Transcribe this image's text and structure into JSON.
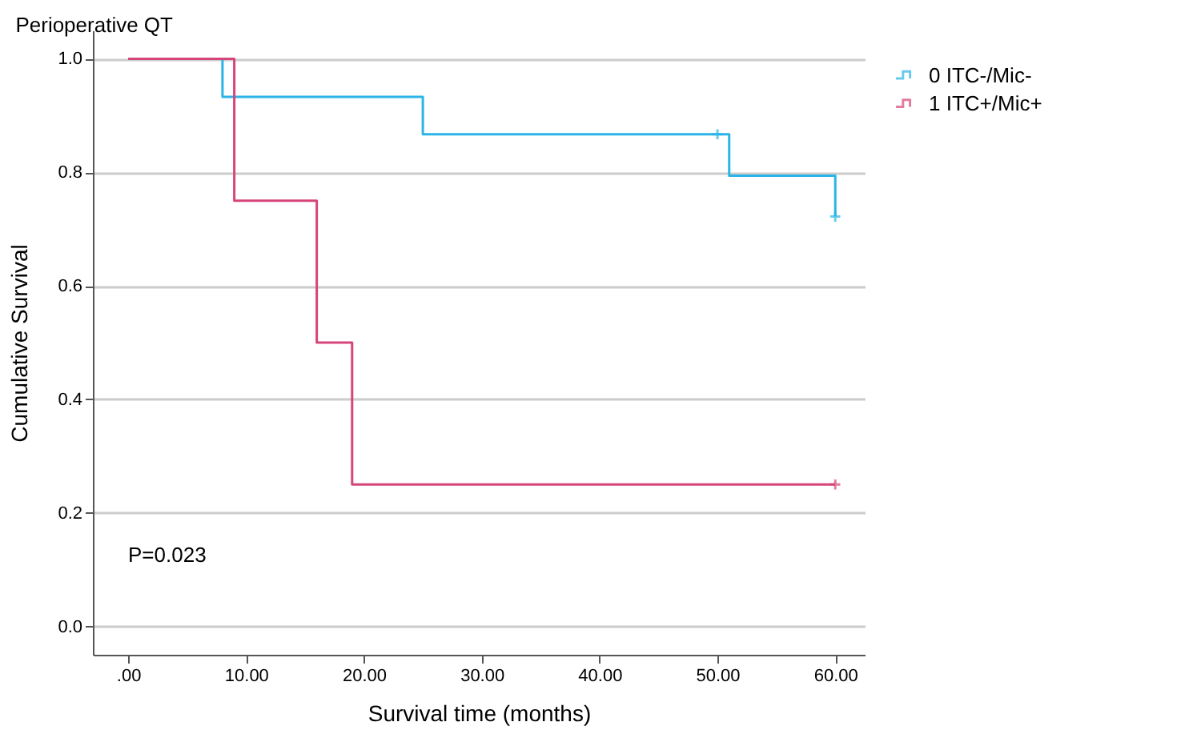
{
  "chart_data": {
    "type": "step",
    "title": "Perioperative QT",
    "xlabel": "Survival time (months)",
    "ylabel": "Cumulative Survival",
    "xlim": [
      -3,
      62.5
    ],
    "ylim": [
      -0.05,
      1.05
    ],
    "xticks": [
      {
        "value": 0,
        "label": ".00"
      },
      {
        "value": 10,
        "label": "10.00"
      },
      {
        "value": 20,
        "label": "20.00"
      },
      {
        "value": 30,
        "label": "30.00"
      },
      {
        "value": 40,
        "label": "40.00"
      },
      {
        "value": 50,
        "label": "50.00"
      },
      {
        "value": 60,
        "label": "60.00"
      }
    ],
    "yticks": [
      {
        "value": 0,
        "label": "0.0"
      },
      {
        "value": 0.2,
        "label": "0.2"
      },
      {
        "value": 0.4,
        "label": "0.4"
      },
      {
        "value": 0.6,
        "label": "0.6"
      },
      {
        "value": 0.8,
        "label": "0.8"
      },
      {
        "value": 1,
        "label": "1.0"
      }
    ],
    "grid": "y",
    "legend": "top right",
    "line_style": "solid",
    "series": [
      {
        "name": "0  ITC-/Mic-",
        "color": "#2ab4e8",
        "x": [
          0,
          8,
          25,
          51,
          60
        ],
        "values": [
          1,
          0.933,
          0.867,
          0.794,
          0.722
        ]
      },
      {
        "name": "1  ITC+/Mic+",
        "color": "#d6457a",
        "x": [
          0,
          9,
          16,
          19,
          60
        ],
        "values": [
          1,
          0.75,
          0.5,
          0.25,
          0.25
        ]
      },
      {
        "type": "scatter",
        "marker": "cross",
        "color": "#2ab4e8",
        "x": [
          50,
          60
        ],
        "values": [
          0.867,
          0.722
        ]
      },
      {
        "type": "scatter",
        "marker": "cross",
        "color": "#d6457a",
        "x": [
          60
        ],
        "values": [
          0.25
        ]
      }
    ],
    "annotations": [
      "P=0.023"
    ]
  }
}
